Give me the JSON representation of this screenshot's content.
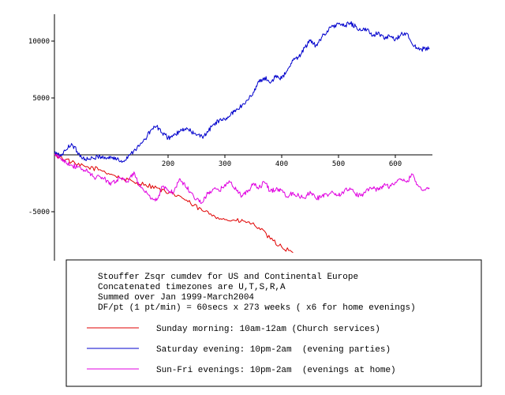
{
  "chart_data": {
    "type": "line",
    "title": "",
    "xlabel": "",
    "ylabel": "",
    "xlim": [
      0,
      660
    ],
    "ylim": [
      -9000,
      12500
    ],
    "x_ticks": [
      {
        "value": 200,
        "label": "200"
      },
      {
        "value": 300,
        "label": "300"
      },
      {
        "value": 400,
        "label": "400"
      },
      {
        "value": 500,
        "label": "500"
      },
      {
        "value": 600,
        "label": "600"
      }
    ],
    "y_ticks": [
      {
        "value": 10000,
        "label": "10000"
      },
      {
        "value": 5000,
        "label": "5000"
      },
      {
        "value": -5000,
        "label": "-5000"
      }
    ],
    "grid": false,
    "legend_position": "bottom",
    "legend_header": [
      "Stouffer Zsqr cumdev for US and Continental Europe",
      "Concatenated timezones are U,T,S,R,A",
      "Summed over Jan 1999-March2004",
      "DF/pt (1 pt/min) = 60secs x 273 weeks ( x6 for home evenings)"
    ],
    "series": [
      {
        "name": "Sunday morning: 10am-12am (Church services)",
        "color": "#e00000",
        "x": [
          0,
          20,
          40,
          60,
          80,
          100,
          120,
          140,
          160,
          180,
          200,
          220,
          240,
          260,
          280,
          300,
          320,
          340,
          360,
          380,
          400,
          420
        ],
        "y": [
          0,
          -400,
          -900,
          -1100,
          -1300,
          -1700,
          -2100,
          -2400,
          -2600,
          -2900,
          -3400,
          -3600,
          -4300,
          -4900,
          -5300,
          -5700,
          -5800,
          -5900,
          -6400,
          -7400,
          -8100,
          -8600
        ]
      },
      {
        "name": "Saturday evening: 10pm-2am  (evening parties)",
        "color": "#0000cc",
        "x": [
          0,
          10,
          20,
          30,
          40,
          50,
          60,
          70,
          80,
          90,
          100,
          110,
          120,
          130,
          140,
          150,
          160,
          170,
          180,
          190,
          200,
          210,
          220,
          230,
          240,
          250,
          260,
          270,
          280,
          290,
          300,
          310,
          320,
          330,
          340,
          350,
          360,
          370,
          380,
          390,
          400,
          410,
          420,
          430,
          440,
          450,
          460,
          470,
          480,
          490,
          500,
          510,
          520,
          530,
          540,
          550,
          560,
          570,
          580,
          590,
          600,
          610,
          620,
          630,
          640,
          650,
          660
        ],
        "y": [
          200,
          -100,
          400,
          1000,
          300,
          -300,
          -400,
          -300,
          -100,
          -300,
          -200,
          -400,
          -600,
          -100,
          400,
          800,
          1400,
          2200,
          2500,
          1900,
          1500,
          1700,
          2000,
          2300,
          2100,
          1700,
          1600,
          2000,
          2700,
          3000,
          3100,
          3500,
          4000,
          4300,
          4800,
          5500,
          6400,
          6800,
          6300,
          7000,
          6700,
          7400,
          8300,
          8600,
          9400,
          10000,
          9600,
          10300,
          10900,
          11300,
          11500,
          11300,
          11600,
          11300,
          10900,
          11000,
          10500,
          10800,
          10200,
          10400,
          10100,
          10600,
          10700,
          9700,
          9300,
          9300,
          9400
        ]
      },
      {
        "name": "Sun-Fri evenings: 10pm-2am  (evenings at home)",
        "color": "#e000e0",
        "x": [
          0,
          10,
          20,
          30,
          40,
          50,
          60,
          70,
          80,
          90,
          100,
          110,
          120,
          130,
          140,
          150,
          160,
          170,
          180,
          190,
          200,
          210,
          220,
          230,
          240,
          250,
          260,
          270,
          280,
          290,
          300,
          310,
          320,
          330,
          340,
          350,
          360,
          370,
          380,
          390,
          400,
          410,
          420,
          430,
          440,
          450,
          460,
          470,
          480,
          490,
          500,
          510,
          520,
          530,
          540,
          550,
          560,
          570,
          580,
          590,
          600,
          610,
          620,
          630,
          640,
          650,
          660
        ],
        "y": [
          0,
          -300,
          -600,
          -900,
          -1100,
          -1300,
          -1500,
          -2000,
          -1900,
          -2200,
          -2500,
          -2200,
          -2000,
          -2400,
          -1500,
          -2800,
          -3300,
          -3900,
          -4000,
          -2800,
          -3100,
          -3300,
          -2100,
          -2700,
          -3300,
          -3900,
          -4200,
          -3400,
          -3000,
          -3200,
          -2600,
          -2400,
          -3100,
          -3600,
          -3300,
          -2500,
          -2900,
          -2400,
          -3200,
          -3000,
          -3100,
          -3700,
          -3300,
          -3600,
          -3800,
          -3200,
          -3800,
          -3700,
          -3500,
          -3300,
          -3600,
          -3200,
          -2900,
          -3500,
          -3600,
          -3000,
          -2900,
          -3100,
          -2600,
          -2800,
          -2400,
          -2200,
          -2400,
          -1700,
          -2700,
          -3100,
          -3000
        ]
      }
    ]
  }
}
